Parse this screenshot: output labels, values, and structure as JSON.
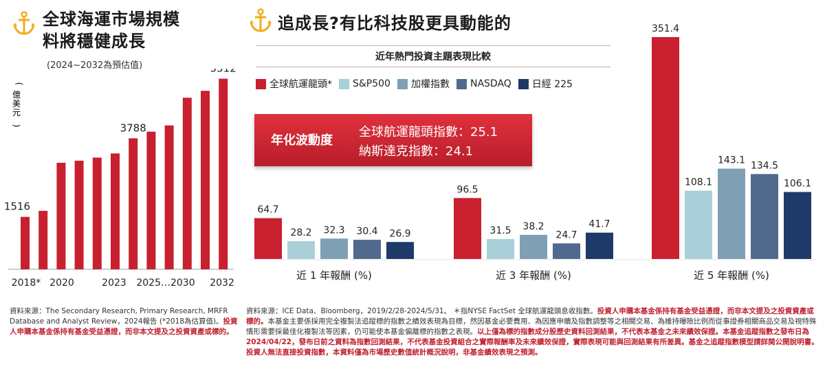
{
  "left_panel": {
    "title_line1": "全球海運市場規模",
    "title_line2": "料將穩健成長",
    "subtitle": "(2024~2032為預估值)",
    "unit_label": "(億美元)",
    "icon": "anchor-icon"
  },
  "right_panel": {
    "title": "追成長?有比科技股更具動能的",
    "chart_title": "近年熱門投資主題表現比較",
    "icon": "anchor-icon",
    "volatility_box": {
      "label": "年化波動度",
      "line1": "全球航運龍頭指數：25.1",
      "line2": "納斯達克指數：24.1"
    }
  },
  "colors": {
    "red": "#c8202f",
    "sp500": "#a9d0d8",
    "taiex": "#7f9fb4",
    "nasdaq": "#4f6a8c",
    "nikkei": "#1e3a68",
    "accent_gold": "#f0ad1d"
  },
  "chart_data": [
    {
      "type": "bar",
      "ylabel": "(億美元)",
      "categories": [
        "2018*",
        "2019",
        "2020",
        "2021",
        "2022",
        "2023",
        "2024",
        "2025",
        "…",
        "2030",
        "2031",
        "2032"
      ],
      "x_tick_labels": [
        "2018*",
        "2020",
        "2023",
        "2025…2030",
        "2032"
      ],
      "values": [
        1516,
        1690,
        3080,
        3140,
        3230,
        3350,
        3788,
        3980,
        4160,
        4960,
        5160,
        5512
      ],
      "data_labels": {
        "0": "1516",
        "6": "3788",
        "11": "5512"
      },
      "ylim": [
        0,
        5800
      ],
      "color": "#c8202f"
    },
    {
      "type": "bar",
      "title": "近年熱門投資主題表現比較",
      "categories": [
        "近 1 年報酬 (%)",
        "近 3 年報酬 (%)",
        "近 5 年報酬 (%)"
      ],
      "series": [
        {
          "name": "全球航運龍頭*",
          "color": "#c8202f",
          "values": [
            64.7,
            96.5,
            351.4
          ]
        },
        {
          "name": "S&P500",
          "color": "#a9d0d8",
          "values": [
            28.2,
            31.5,
            108.1
          ]
        },
        {
          "name": "加權指數",
          "color": "#7f9fb4",
          "values": [
            32.3,
            38.2,
            143.1
          ]
        },
        {
          "name": "NASDAQ",
          "color": "#4f6a8c",
          "values": [
            30.4,
            24.7,
            134.5
          ]
        },
        {
          "name": "日經 225",
          "color": "#1e3a68",
          "values": [
            26.9,
            41.7,
            106.1
          ]
        }
      ],
      "ylim": [
        0,
        360
      ]
    }
  ],
  "footnotes": {
    "left_normal": "資料來源：The Secondary Research, Primary Research, MRFR Database and Analyst Review，2024報告 (*2018為估算值)。",
    "left_red": "投資人申購本基金係持有基金受益憑證，而非本文提及之投資資產或標的。",
    "right_parts": [
      {
        "text": "資料來源：ICE Data、Bloomberg，2019/2/28-2024/5/31。  ＊指NYSE FactSet 全球航運龍頭息收指數。",
        "red": false
      },
      {
        "text": "投資人申購本基金係持有基金受益憑證，而非本文提及之投資資產或標的。",
        "red": true
      },
      {
        "text": "本基金主要係採用完全複製法追蹤標的指數之績效表現為目標，然因基金必要費用、為因應申贖及指數調整等之相關交易、為維持曝險比例而從事證券相關商品交易及視特殊情形需要採最佳化複製法等因素，仍可能使本基金偏離標的指數之表現。",
        "red": false
      },
      {
        "text": "以上僅為標的指數成分股歷史資料回測結果，不代表本基金之未來績效保證。本基金追蹤指數之發布日為2024/04/22，發布日前之資料為指數回測結果，不代表基金投資組合之實際報酬率及未來績效保證，實際表現可能與回測結果有所差異。基金之追蹤指數模型請詳閱公開說明書。投資人無法直接投資指數，本資料僅為市場歷史數值統計概況說明，非基金績效表現之預測。",
        "red": true
      }
    ]
  }
}
